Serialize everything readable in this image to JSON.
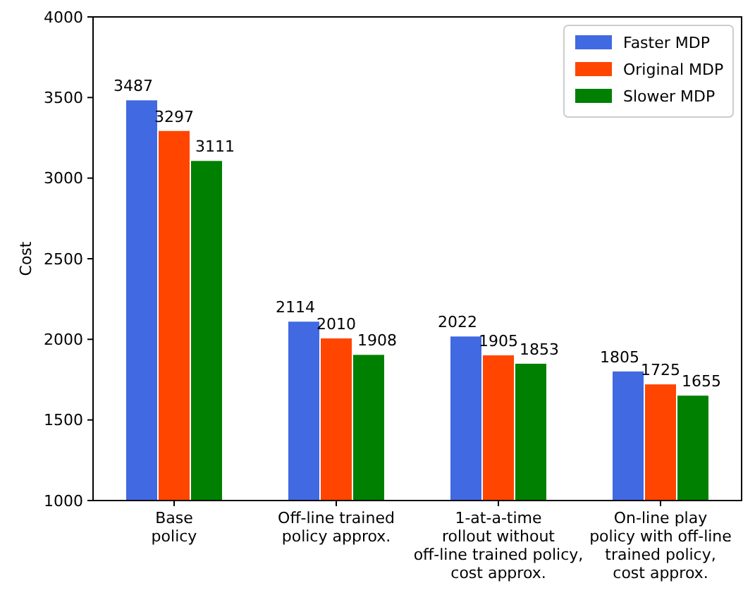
{
  "chart_data": {
    "type": "bar",
    "ylabel": "Cost",
    "categories": [
      "Base\npolicy",
      "Off-line trained\npolicy approx.",
      "1-at-a-time\nrollout without\noff-line trained policy,\ncost approx.",
      "On-line play\npolicy with off-line\ntrained policy,\ncost approx."
    ],
    "series": [
      {
        "name": "Faster MDP",
        "color": "#4169e1",
        "values": [
          3487,
          2114,
          2022,
          1805
        ]
      },
      {
        "name": "Original MDP",
        "color": "#ff4500",
        "values": [
          3297,
          2010,
          1905,
          1725
        ]
      },
      {
        "name": "Slower MDP",
        "color": "#008000",
        "values": [
          3111,
          1908,
          1853,
          1655
        ]
      }
    ],
    "ylim": [
      1000,
      4000
    ],
    "yticks": [
      1000,
      1500,
      2000,
      2500,
      3000,
      3500,
      4000
    ],
    "data_labels": true,
    "legend": "top right"
  }
}
